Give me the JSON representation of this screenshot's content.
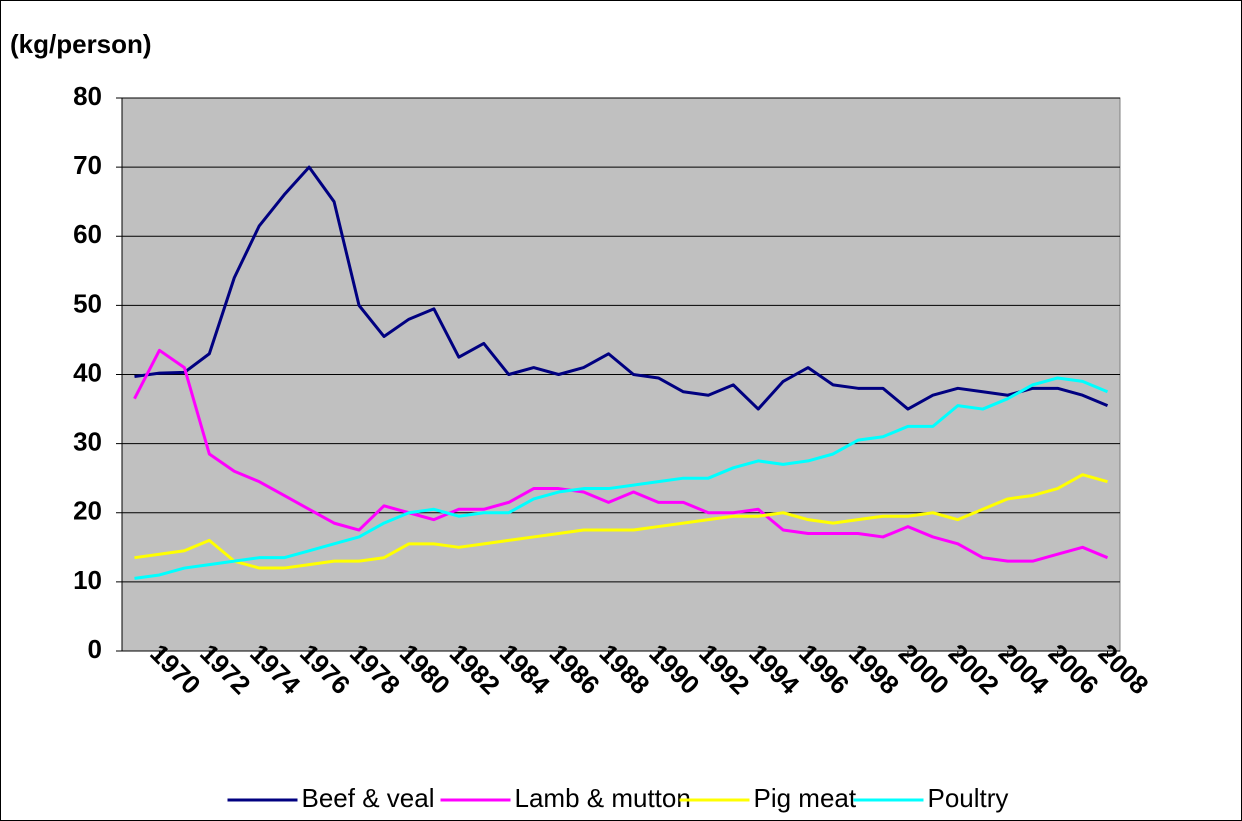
{
  "chart_data": {
    "type": "line",
    "y_label": "(kg/person)",
    "x": [
      1969,
      1970,
      1971,
      1972,
      1973,
      1974,
      1975,
      1976,
      1977,
      1978,
      1979,
      1980,
      1981,
      1982,
      1983,
      1984,
      1985,
      1986,
      1987,
      1988,
      1989,
      1990,
      1991,
      1992,
      1993,
      1994,
      1995,
      1996,
      1997,
      1998,
      1999,
      2000,
      2001,
      2002,
      2003,
      2004,
      2005,
      2006,
      2007,
      2008
    ],
    "xlim": [
      1968.5,
      2008.5
    ],
    "xticks": [
      1970,
      1972,
      1974,
      1976,
      1978,
      1980,
      1982,
      1984,
      1986,
      1988,
      1990,
      1992,
      1994,
      1996,
      1998,
      2000,
      2002,
      2004,
      2006,
      2008
    ],
    "ylim": [
      0,
      80
    ],
    "yticks": [
      0,
      10,
      20,
      30,
      40,
      50,
      60,
      70,
      80
    ],
    "grid": true,
    "legend": "bottom",
    "series": [
      {
        "name": "Beef & veal",
        "color": "#000080",
        "values": [
          39.7,
          40.2,
          40.3,
          43,
          54,
          61.5,
          66,
          70,
          65,
          50,
          45.5,
          48,
          49.5,
          42.5,
          44.5,
          40,
          41,
          40,
          41,
          43,
          40,
          39.5,
          37.5,
          37,
          38.5,
          35,
          39,
          41,
          38.5,
          38,
          38,
          35,
          37,
          38,
          37.5,
          37,
          38,
          38,
          37,
          35.5
        ]
      },
      {
        "name": "Lamb & mutton",
        "color": "#ff00ff",
        "values": [
          36.5,
          43.5,
          41,
          28.5,
          26,
          24.5,
          22.5,
          20.5,
          18.5,
          17.5,
          21,
          20,
          19,
          20.5,
          20.5,
          21.5,
          23.5,
          23.5,
          23,
          21.5,
          23,
          21.5,
          21.5,
          20,
          20,
          20.5,
          17.5,
          17,
          17,
          17,
          16.5,
          18,
          16.5,
          15.5,
          13.5,
          13,
          13,
          14,
          15,
          13.5
        ]
      },
      {
        "name": "Pig meat",
        "color": "#ffff00",
        "values": [
          13.5,
          14,
          14.5,
          16,
          13,
          12,
          12,
          12.5,
          13,
          13,
          13.5,
          15.5,
          15.5,
          15,
          15.5,
          16,
          16.5,
          17,
          17.5,
          17.5,
          17.5,
          18,
          18.5,
          19,
          19.5,
          19.5,
          20,
          19,
          18.5,
          19,
          19.5,
          19.5,
          20,
          19,
          20.5,
          22,
          22.5,
          23.5,
          25.5,
          24.5
        ]
      },
      {
        "name": "Poultry",
        "color": "#00ffff",
        "values": [
          10.5,
          11,
          12,
          12.5,
          13,
          13.5,
          13.5,
          14.5,
          15.5,
          16.5,
          18.5,
          20,
          20.5,
          19.5,
          20,
          20,
          22,
          23,
          23.5,
          23.5,
          24,
          24.5,
          25,
          25,
          26.5,
          27.5,
          27,
          27.5,
          28.5,
          30.5,
          31,
          32.5,
          32.5,
          35.5,
          35,
          36.5,
          38.5,
          39.5,
          39,
          37.5
        ]
      }
    ]
  }
}
